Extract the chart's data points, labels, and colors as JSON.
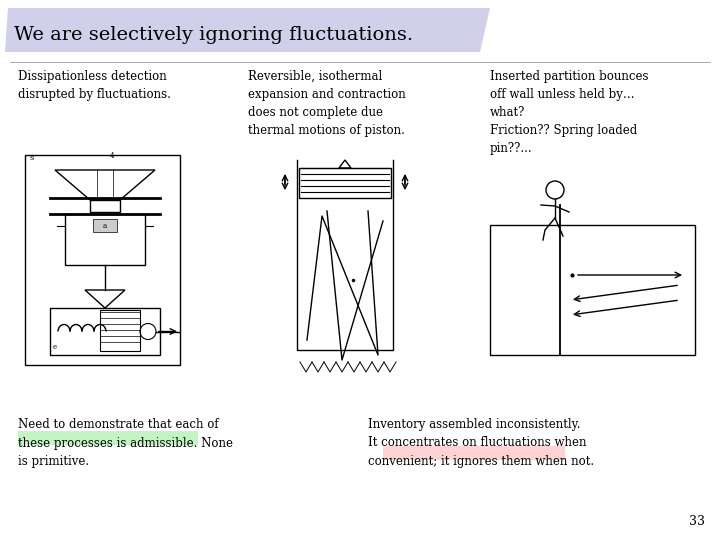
{
  "bg_color": "#ffffff",
  "title": "We are selectively ignoring fluctuations.",
  "title_bg": "#c8c8e8",
  "title_fontsize": 14,
  "text_font": "DejaVu Serif",
  "col1_header": "Dissipationless detection\ndisrupted by fluctuations.",
  "col2_header": "Reversible, isothermal\nexpansion and contraction\ndoes not complete due\nthermal motions of piston.",
  "col3_header": "Inserted partition bounces\noff wall unless held by…\nwhat?\nFriction?? Spring loaded\npin??...",
  "bottom_left": "Need to demonstrate that each of\nthese processes is admissible. None\nis primitive.",
  "bottom_right": "Inventory assembled inconsistently.\nIt concentrates on fluctuations when\nconvenient; it ignores them when not.",
  "bottom_left_highlight": "#90ee90",
  "bottom_right_highlight": "#ffb0b0",
  "page_number": "33",
  "text_fontsize": 8.5
}
